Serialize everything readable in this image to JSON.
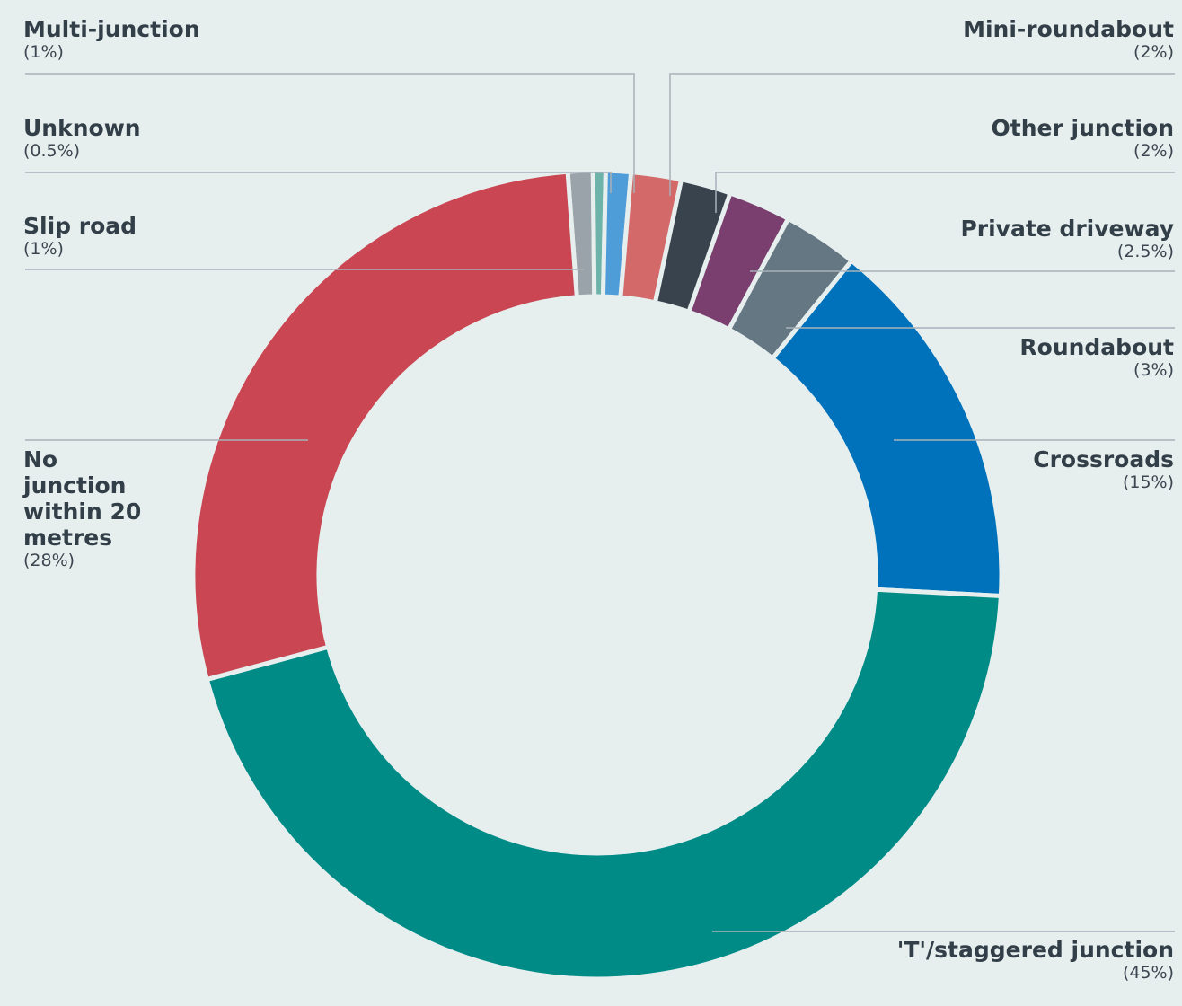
{
  "chart_data": {
    "type": "donut",
    "categories": [
      "Slip road",
      "Unknown",
      "Multi-junction",
      "Mini-roundabout",
      "Other junction",
      "Private driveway",
      "Roundabout",
      "Crossroads",
      "'T'/staggered junction",
      "No junction within 20 metres"
    ],
    "values": [
      1,
      0.5,
      1,
      2,
      2,
      2.5,
      3,
      15,
      45,
      28
    ],
    "value_labels": [
      "(1%)",
      "(0.5%)",
      "(1%)",
      "(2%)",
      "(2%)",
      "(2.5%)",
      "(3%)",
      "(15%)",
      "(45%)",
      "(28%)"
    ],
    "colors": [
      "#9aa2aa",
      "#6db3a9",
      "#4e9cd8",
      "#d4696a",
      "#38434d",
      "#7a3f6f",
      "#667784",
      "#0072bb",
      "#008b87",
      "#c94652"
    ]
  }
}
